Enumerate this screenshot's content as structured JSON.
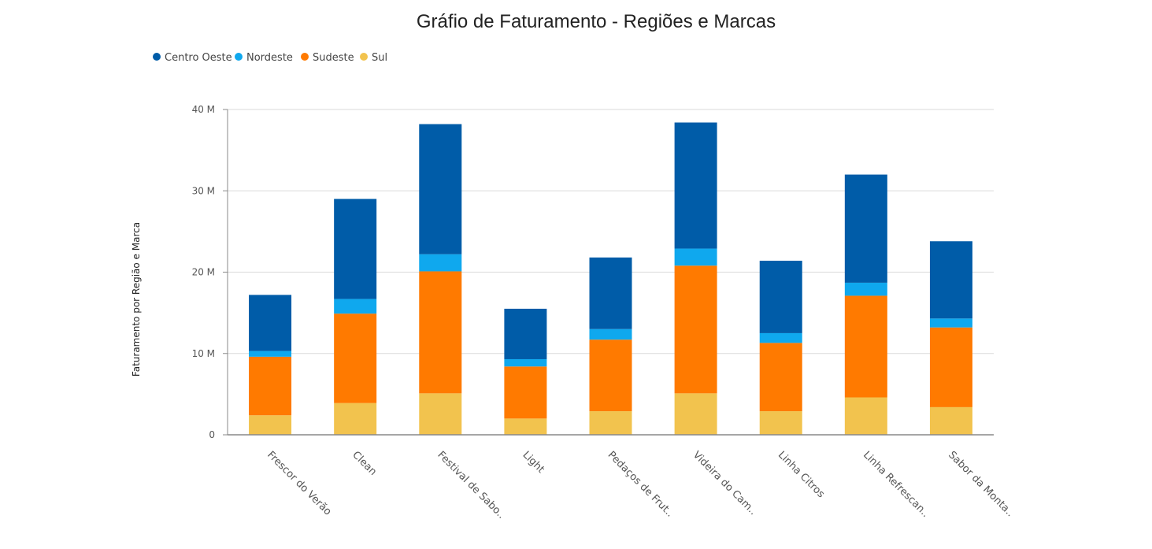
{
  "chart_data": {
    "type": "bar",
    "stacked": true,
    "title": "Gráfio de Faturamento - Regiões e Marcas",
    "ylabel": "Faturamento por Região e Marca",
    "xlabel": "",
    "ylim": [
      0,
      40
    ],
    "y_ticks": [
      {
        "value": 0,
        "label": "0"
      },
      {
        "value": 10,
        "label": "10 M"
      },
      {
        "value": 20,
        "label": "20 M"
      },
      {
        "value": 30,
        "label": "30 M"
      },
      {
        "value": 40,
        "label": "40 M"
      }
    ],
    "grid": true,
    "legend_position": "top-left",
    "categories": [
      "Frescor do Verão",
      "Clean",
      "Festival de Sabo..",
      "Light",
      "Pedaços de Frut..",
      "Videira do Cam..",
      "Linha Citros",
      "Linha Refrescan..",
      "Sabor da Monta.."
    ],
    "series": [
      {
        "name": "Sul",
        "color": "#F2C34E",
        "values": [
          2.4,
          3.9,
          5.1,
          2.0,
          2.9,
          5.1,
          2.9,
          4.6,
          3.4
        ]
      },
      {
        "name": "Sudeste",
        "color": "#FF7A00",
        "values": [
          7.2,
          11.0,
          15.0,
          6.4,
          8.8,
          15.7,
          8.4,
          12.5,
          9.8
        ]
      },
      {
        "name": "Nordeste",
        "color": "#0FA8EE",
        "values": [
          0.7,
          1.8,
          2.1,
          0.9,
          1.3,
          2.1,
          1.2,
          1.6,
          1.1
        ]
      },
      {
        "name": "Centro Oeste",
        "color": "#005CA8",
        "values": [
          6.9,
          12.3,
          16.0,
          6.2,
          8.8,
          15.5,
          8.9,
          13.3,
          9.5
        ]
      }
    ],
    "legend_order": [
      "Centro Oeste",
      "Nordeste",
      "Sudeste",
      "Sul"
    ]
  }
}
